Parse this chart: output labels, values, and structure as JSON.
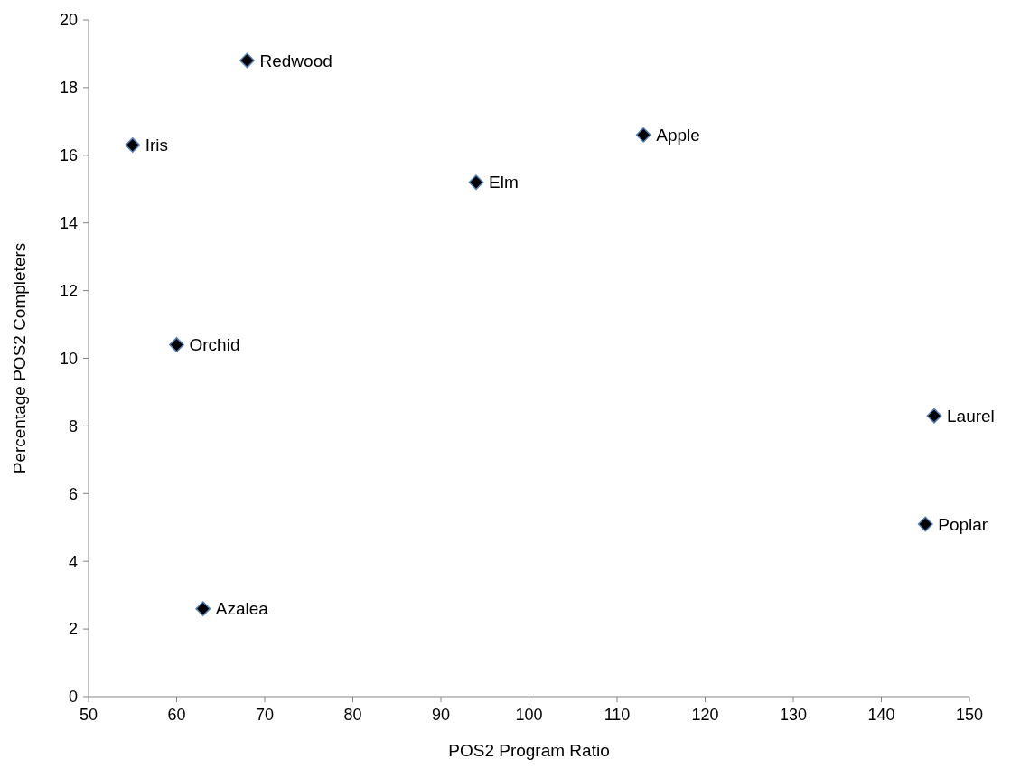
{
  "chart_data": {
    "type": "scatter",
    "xlabel": "POS2 Program Ratio",
    "ylabel": "Percentage POS2 Completers",
    "x": [
      68,
      55,
      113,
      94,
      60,
      146,
      145,
      63
    ],
    "values": [
      18.8,
      16.3,
      16.6,
      15.2,
      10.4,
      8.3,
      5.1,
      2.6
    ],
    "color": "#000000",
    "marker": "diamond",
    "xlim": [
      50,
      150
    ],
    "xticks": [
      50,
      60,
      70,
      80,
      90,
      100,
      110,
      120,
      130,
      140,
      150
    ],
    "ylim": [
      0,
      20
    ],
    "yticks": [
      0,
      2,
      4,
      6,
      8,
      10,
      12,
      14,
      16,
      18,
      20
    ],
    "grid": false,
    "annotations": [
      {
        "text": "Redwood",
        "x": 68,
        "y": 18.8
      },
      {
        "text": "Iris",
        "x": 55,
        "y": 16.3
      },
      {
        "text": "Apple",
        "x": 113,
        "y": 16.6
      },
      {
        "text": "Elm",
        "x": 94,
        "y": 15.2
      },
      {
        "text": "Orchid",
        "x": 60,
        "y": 10.4
      },
      {
        "text": "Laurel",
        "x": 146,
        "y": 8.3
      },
      {
        "text": "Poplar",
        "x": 145,
        "y": 5.1
      },
      {
        "text": "Azalea",
        "x": 63,
        "y": 2.6
      }
    ]
  }
}
